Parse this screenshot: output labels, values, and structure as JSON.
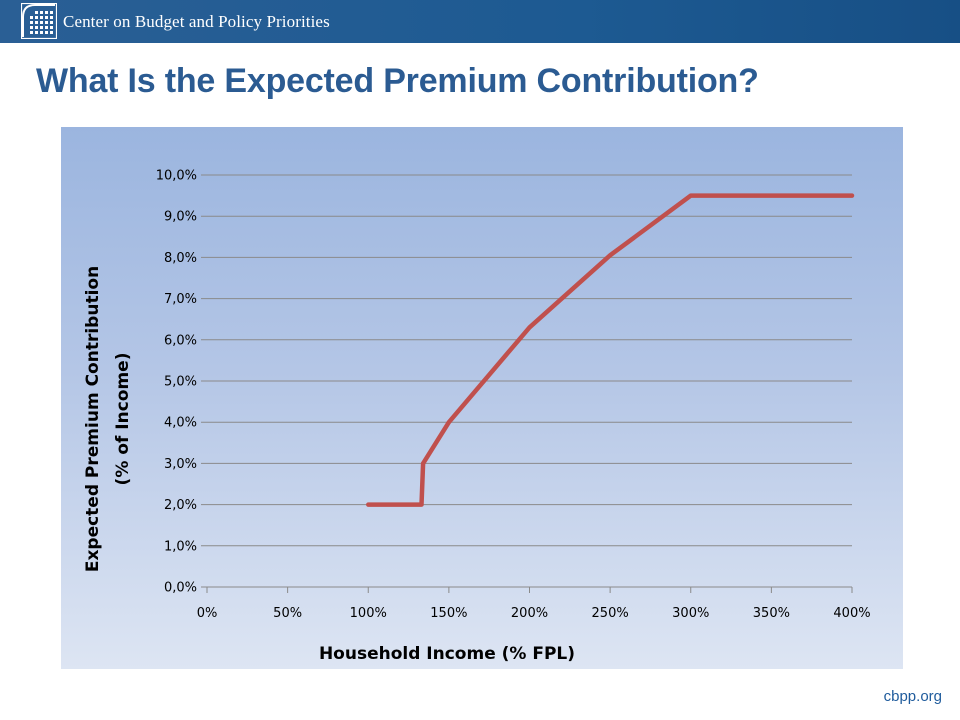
{
  "header": {
    "org_name": "Center on Budget and Policy Priorities",
    "logo_icon": "cbpp-grid-logo-icon"
  },
  "title": "What Is the Expected Premium Contribution?",
  "footer": {
    "url": "cbpp.org"
  },
  "colors": {
    "header_bg": "#1d5a92",
    "title": "#2b5b92",
    "series_line": "#c0504d",
    "footer_link": "#1f5b9c"
  },
  "chart_data": {
    "type": "line",
    "title": "",
    "xlabel": "Household Income (% FPL)",
    "ylabel_line1": "Expected Premium Contribution",
    "ylabel_line2": "(% of Income)",
    "xlim": [
      0,
      400
    ],
    "ylim": [
      0,
      10
    ],
    "x_ticks": [
      0,
      50,
      100,
      150,
      200,
      250,
      300,
      350,
      400
    ],
    "x_tick_labels": [
      "0%",
      "50%",
      "100%",
      "150%",
      "200%",
      "250%",
      "300%",
      "350%",
      "400%"
    ],
    "y_ticks": [
      0,
      1,
      2,
      3,
      4,
      5,
      6,
      7,
      8,
      9,
      10
    ],
    "y_tick_labels": [
      "0,0%",
      "1,0%",
      "2,0%",
      "3,0%",
      "4,0%",
      "5,0%",
      "6,0%",
      "7,0%",
      "8,0%",
      "9,0%",
      "10,0%"
    ],
    "grid": "horizontal",
    "legend": "none",
    "series": [
      {
        "x": [
          100,
          133,
          134,
          150,
          200,
          250,
          300,
          400
        ],
        "y": [
          2.0,
          2.0,
          3.0,
          4.0,
          6.3,
          8.05,
          9.5,
          9.5
        ]
      }
    ]
  }
}
